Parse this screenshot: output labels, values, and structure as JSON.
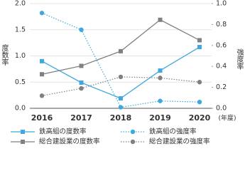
{
  "chart_data": {
    "type": "line",
    "categories": [
      "2016",
      "2017",
      "2018",
      "2019",
      "2020"
    ],
    "x_unit": "(年度)",
    "y_label": "度数率",
    "y2_label": "強度率",
    "ylim": [
      0,
      2.0
    ],
    "yticks": [
      {
        "value": 0,
        "label": "0.0"
      },
      {
        "value": 0.5,
        "label": "0.5"
      },
      {
        "value": 1.0,
        "label": "1.0"
      },
      {
        "value": 1.5,
        "label": "1.5"
      },
      {
        "value": 2.0,
        "label": "2.0"
      }
    ],
    "y2lim": [
      0,
      1.0
    ],
    "y2ticks": [
      {
        "value": 0,
        "label": "0.0"
      },
      0.2,
      0.4,
      0.6,
      0.8,
      {
        "value": 1.0,
        "label": "1.0"
      }
    ],
    "grid": true,
    "series": [
      {
        "name": "鉄高組の度数率",
        "color": "#3ea8df",
        "marker": "square",
        "dash": false,
        "axis": "y",
        "values": [
          0.9,
          0.49,
          0.19,
          0.72,
          1.17
        ]
      },
      {
        "name": "鉄高組の強度率",
        "color": "#3ea8df",
        "marker": "circle",
        "dash": true,
        "axis": "y2",
        "values": [
          0.91,
          0.75,
          0.01,
          0.07,
          0.06
        ]
      },
      {
        "name": "総合建設業の度数率",
        "color": "#808080",
        "marker": "square",
        "dash": false,
        "axis": "y",
        "values": [
          0.65,
          0.81,
          1.09,
          1.69,
          1.3
        ]
      },
      {
        "name": "総合建設業の強度率",
        "color": "#808080",
        "marker": "circle",
        "dash": true,
        "axis": "y2",
        "values": [
          0.12,
          0.19,
          0.3,
          0.29,
          0.25
        ]
      }
    ]
  }
}
